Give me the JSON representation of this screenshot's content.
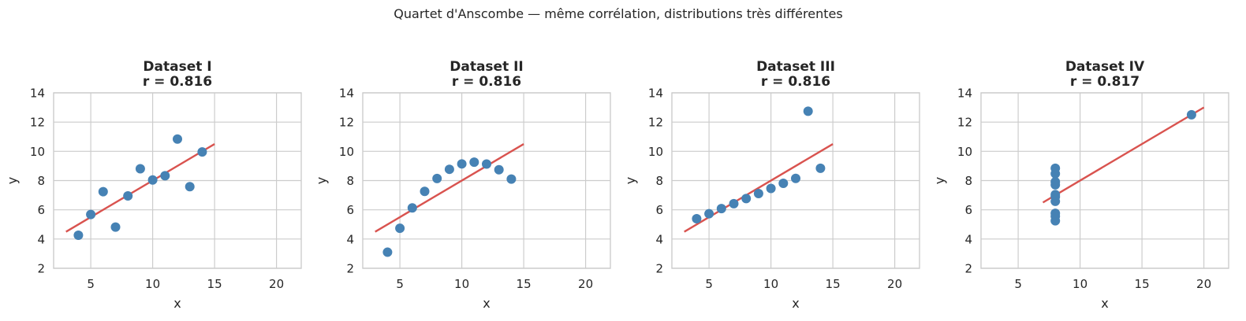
{
  "figure_title": "Quartet d'Anscombe — même corrélation, distributions très différentes",
  "colors": {
    "points": "#4682b4",
    "fit": "#d9534f",
    "grid": "#cccccc",
    "text": "#262626"
  },
  "chart_data": [
    {
      "type": "scatter",
      "title": "Dataset I",
      "subtitle": "r = 0.816",
      "xlabel": "x",
      "ylabel": "y",
      "xlim": [
        2,
        22
      ],
      "ylim": [
        2,
        14
      ],
      "xticks": [
        5,
        10,
        15,
        20
      ],
      "yticks": [
        2,
        4,
        6,
        8,
        10,
        12,
        14
      ],
      "grid": true,
      "x": [
        10,
        8,
        13,
        9,
        11,
        14,
        6,
        4,
        12,
        7,
        5
      ],
      "y": [
        8.04,
        6.95,
        7.58,
        8.81,
        8.33,
        9.96,
        7.24,
        4.26,
        10.84,
        4.82,
        5.68
      ],
      "fit_line": {
        "x": [
          3,
          15
        ],
        "y": [
          4.5,
          10.5
        ]
      }
    },
    {
      "type": "scatter",
      "title": "Dataset II",
      "subtitle": "r = 0.816",
      "xlabel": "x",
      "ylabel": "y",
      "xlim": [
        2,
        22
      ],
      "ylim": [
        2,
        14
      ],
      "xticks": [
        5,
        10,
        15,
        20
      ],
      "yticks": [
        2,
        4,
        6,
        8,
        10,
        12,
        14
      ],
      "grid": true,
      "x": [
        10,
        8,
        13,
        9,
        11,
        14,
        6,
        4,
        12,
        7,
        5
      ],
      "y": [
        9.14,
        8.14,
        8.74,
        8.77,
        9.26,
        8.1,
        6.13,
        3.1,
        9.13,
        7.26,
        4.74
      ],
      "fit_line": {
        "x": [
          3,
          15
        ],
        "y": [
          4.5,
          10.5
        ]
      }
    },
    {
      "type": "scatter",
      "title": "Dataset III",
      "subtitle": "r = 0.816",
      "xlabel": "x",
      "ylabel": "y",
      "xlim": [
        2,
        22
      ],
      "ylim": [
        2,
        14
      ],
      "xticks": [
        5,
        10,
        15,
        20
      ],
      "yticks": [
        2,
        4,
        6,
        8,
        10,
        12,
        14
      ],
      "grid": true,
      "x": [
        10,
        8,
        13,
        9,
        11,
        14,
        6,
        4,
        12,
        7,
        5
      ],
      "y": [
        7.46,
        6.77,
        12.74,
        7.11,
        7.81,
        8.84,
        6.08,
        5.39,
        8.15,
        6.42,
        5.73
      ],
      "fit_line": {
        "x": [
          3,
          15
        ],
        "y": [
          4.5,
          10.5
        ]
      }
    },
    {
      "type": "scatter",
      "title": "Dataset IV",
      "subtitle": "r = 0.817",
      "xlabel": "x",
      "ylabel": "y",
      "xlim": [
        2,
        22
      ],
      "ylim": [
        2,
        14
      ],
      "xticks": [
        5,
        10,
        15,
        20
      ],
      "yticks": [
        2,
        4,
        6,
        8,
        10,
        12,
        14
      ],
      "grid": true,
      "x": [
        8,
        8,
        8,
        8,
        8,
        8,
        8,
        19,
        8,
        8,
        8
      ],
      "y": [
        6.58,
        5.76,
        7.71,
        8.84,
        8.47,
        7.04,
        5.25,
        12.5,
        5.56,
        7.91,
        6.89
      ],
      "fit_line": {
        "x": [
          7,
          20
        ],
        "y": [
          6.5,
          13.0
        ]
      }
    }
  ]
}
